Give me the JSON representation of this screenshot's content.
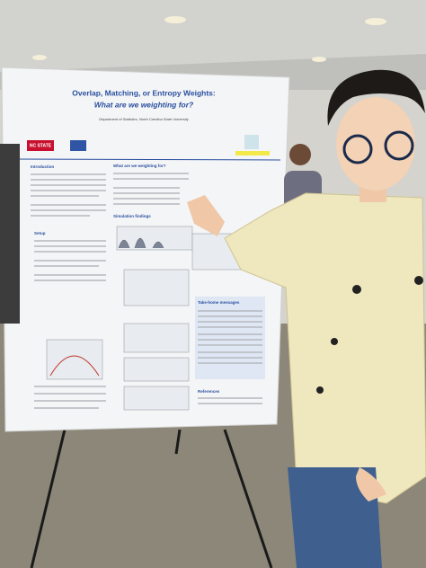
{
  "poster": {
    "title": "Overlap, Matching, or Entropy Weights:",
    "subtitle": "What are we weighting for?",
    "affiliation": "Department of Statistics, North Carolina State University",
    "logo": "NC STATE",
    "sections": [
      "Introduction",
      "Setup",
      "What are we weighting for?",
      "Simulation findings",
      "Take-home messages",
      "References"
    ]
  }
}
